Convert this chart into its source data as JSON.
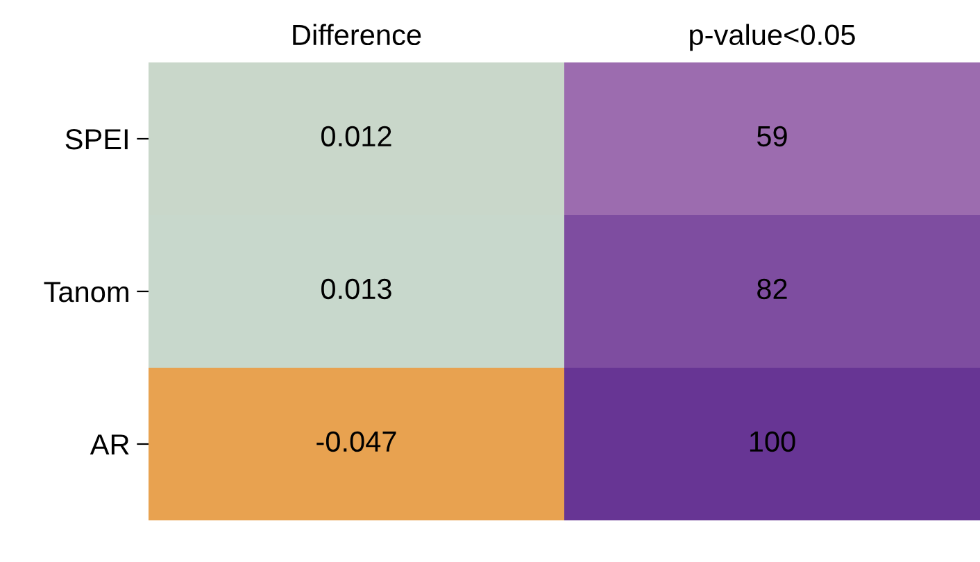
{
  "chart_data": {
    "type": "heatmap",
    "data_labels": true,
    "categories": [
      "Difference",
      "p-value<0.05"
    ],
    "y_categories": [
      "SPEI",
      "Tanom",
      "AR"
    ],
    "cells": [
      [
        0.012,
        59
      ],
      [
        0.013,
        82
      ],
      [
        -0.047,
        100
      ]
    ]
  }
}
